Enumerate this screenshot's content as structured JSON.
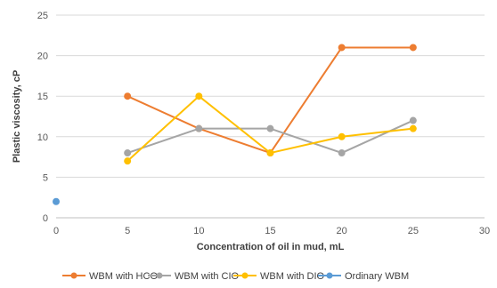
{
  "chart_data": {
    "type": "line",
    "title": "",
    "xlabel": "Concentration of oil in mud, mL",
    "ylabel": "Plastic viscosity, cP",
    "xlim": [
      0,
      30
    ],
    "ylim": [
      0,
      25
    ],
    "x_ticks": [
      0,
      5,
      10,
      15,
      20,
      25,
      30
    ],
    "y_ticks": [
      0,
      5,
      10,
      15,
      20,
      25
    ],
    "grid": "horizontal",
    "legend_position": "bottom",
    "series": [
      {
        "name": "WBM with HCO",
        "color": "#ED7D31",
        "points": [
          [
            5,
            15
          ],
          [
            10,
            11
          ],
          [
            15,
            8
          ],
          [
            20,
            21
          ],
          [
            25,
            21
          ]
        ]
      },
      {
        "name": "WBM with CIO",
        "color": "#A5A5A5",
        "points": [
          [
            5,
            8
          ],
          [
            10,
            11
          ],
          [
            15,
            11
          ],
          [
            20,
            8
          ],
          [
            25,
            12
          ]
        ]
      },
      {
        "name": "WBM with DIO",
        "color": "#FFC000",
        "points": [
          [
            5,
            7
          ],
          [
            10,
            15
          ],
          [
            15,
            8
          ],
          [
            20,
            10
          ],
          [
            25,
            11
          ]
        ]
      },
      {
        "name": "Ordinary WBM",
        "color": "#5B9BD5",
        "points": [
          [
            0,
            2
          ]
        ]
      }
    ]
  }
}
